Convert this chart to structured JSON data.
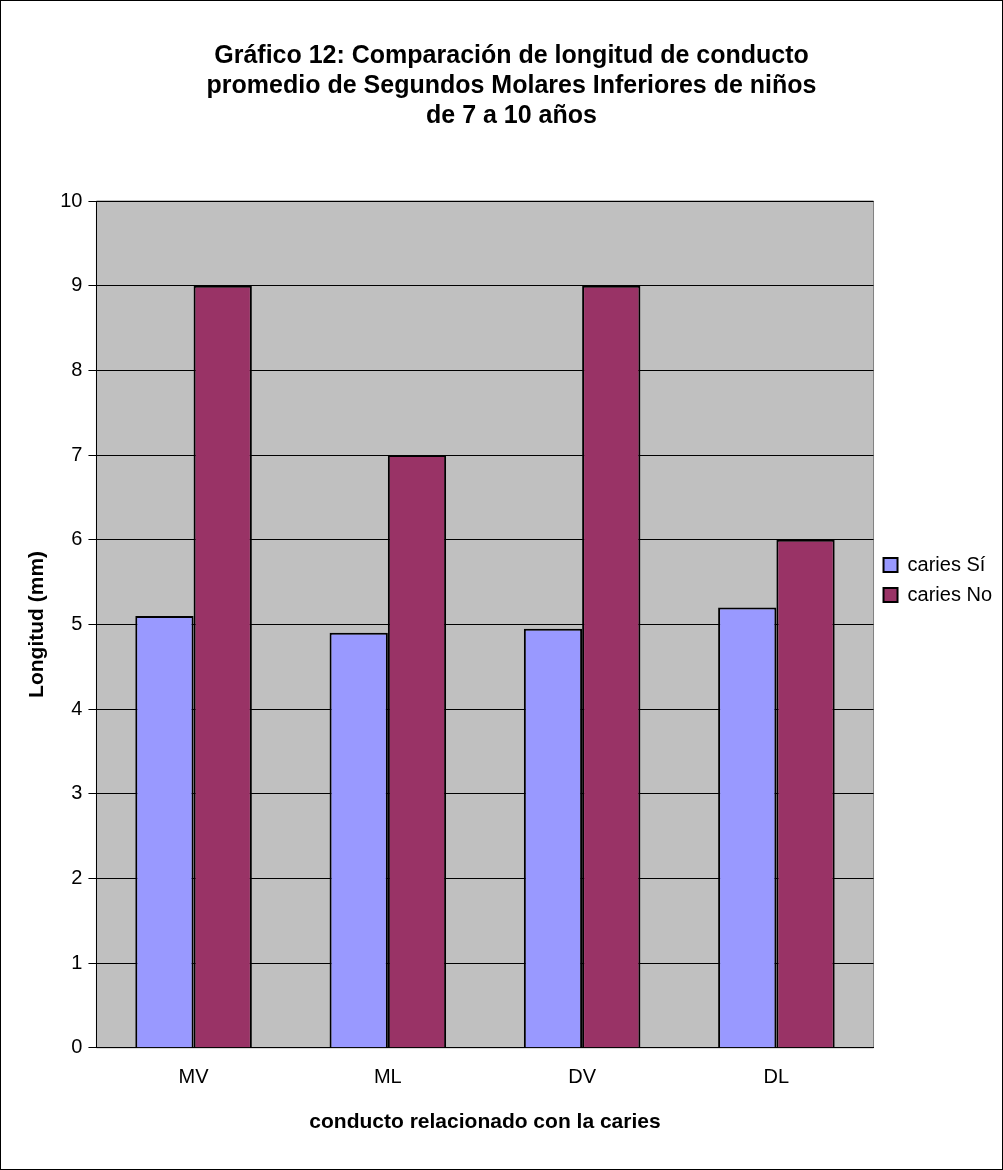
{
  "chart_data": {
    "type": "bar",
    "title": [
      "Gráfico 12: Comparación de longitud de conducto",
      "promedio de Segundos Molares Inferiores de niños",
      "de 7 a 10 años"
    ],
    "xlabel": "conducto relacionado con la caries",
    "ylabel": "Longitud (mm)",
    "categories": [
      "MV",
      "ML",
      "DV",
      "DL"
    ],
    "series": [
      {
        "name": "caries Sí",
        "color": "#9999ff",
        "values": [
          5.1,
          4.9,
          4.95,
          5.2
        ]
      },
      {
        "name": "caries No",
        "color": "#993366",
        "values": [
          9,
          7,
          9,
          6
        ]
      }
    ],
    "ylim": [
      0,
      10
    ],
    "yticks": [
      0,
      1,
      2,
      3,
      4,
      5,
      6,
      7,
      8,
      9,
      10
    ],
    "grid": "y",
    "legend": "right"
  }
}
